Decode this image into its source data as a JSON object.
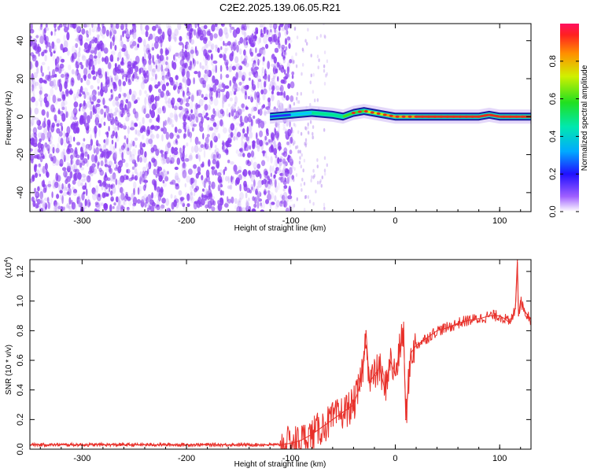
{
  "title": "C2E2.2025.139.06.05.R21",
  "colors": {
    "noise": "#8a3cf0",
    "trace_peak": "#e0301c",
    "snr_line": "#e8302a"
  },
  "chart_data": [
    {
      "type": "heatmap",
      "xlabel": "Height of straight line (km)",
      "ylabel": "Frequency (Hz)",
      "xlim": [
        -350,
        130
      ],
      "ylim": [
        -50,
        49
      ],
      "xticks": [
        -300,
        -200,
        -100,
        0,
        100
      ],
      "yticks": [
        -40,
        -20,
        0,
        20,
        40
      ],
      "colorbar": {
        "label": "Normalized spectral amplitude",
        "range": [
          0,
          1
        ],
        "ticks": [
          "0.0",
          "0.2",
          "0.4",
          "0.6",
          "0.8"
        ]
      },
      "regions": [
        {
          "x_range": [
            -350,
            -98
          ],
          "description_value": "broadband noise",
          "amplitude": 0.1
        },
        {
          "x_range": [
            -120,
            130
          ],
          "frequency_center": 0,
          "amplitude": 0.9
        }
      ],
      "trace": {
        "x": [
          -120,
          -100,
          -80,
          -60,
          -50,
          -40,
          -30,
          -20,
          -10,
          0,
          20,
          40,
          60,
          80,
          90,
          100,
          110,
          120,
          130
        ],
        "y": [
          0,
          1,
          2,
          1,
          0,
          2,
          3,
          2,
          1,
          0,
          0,
          0,
          0,
          0,
          1,
          0,
          0,
          0,
          0
        ],
        "amplitude": [
          0.3,
          0.4,
          0.5,
          0.6,
          0.7,
          0.75,
          0.8,
          0.85,
          0.9,
          0.9,
          0.95,
          0.95,
          0.95,
          0.95,
          0.95,
          0.95,
          0.95,
          0.95,
          0.95
        ]
      }
    },
    {
      "type": "line",
      "xlabel": "Height of straight line (km)",
      "ylabel": "SNR (10 * v/v)",
      "y_multiplier_label": "(x10",
      "y_multiplier_exp": "4",
      "y_multiplier_close": ")",
      "xlim": [
        -350,
        130
      ],
      "ylim": [
        0,
        1.28
      ],
      "xticks": [
        -300,
        -200,
        -100,
        0,
        100
      ],
      "yticks": [
        "0.0",
        "0.2",
        "0.4",
        "0.6",
        "0.8",
        "1.0",
        "1.2"
      ],
      "series": [
        {
          "x": [
            -350,
            -300,
            -250,
            -200,
            -150,
            -110,
            -100,
            -90,
            -80,
            -70,
            -60,
            -50,
            -40,
            -35,
            -30,
            -28,
            -25,
            -20,
            -15,
            -10,
            -5,
            0,
            5,
            8,
            10,
            15,
            20,
            30,
            40,
            50,
            60,
            70,
            80,
            90,
            100,
            105,
            110,
            115,
            117,
            118,
            120,
            125,
            130
          ],
          "y": [
            0.03,
            0.03,
            0.03,
            0.03,
            0.03,
            0.03,
            0.04,
            0.06,
            0.1,
            0.15,
            0.2,
            0.25,
            0.3,
            0.4,
            0.6,
            0.8,
            0.45,
            0.5,
            0.55,
            0.4,
            0.6,
            0.5,
            0.7,
            0.8,
            0.2,
            0.65,
            0.7,
            0.75,
            0.8,
            0.82,
            0.85,
            0.87,
            0.88,
            0.9,
            0.9,
            0.88,
            0.85,
            0.95,
            1.28,
            0.9,
            1.0,
            0.92,
            0.88
          ]
        }
      ]
    }
  ]
}
